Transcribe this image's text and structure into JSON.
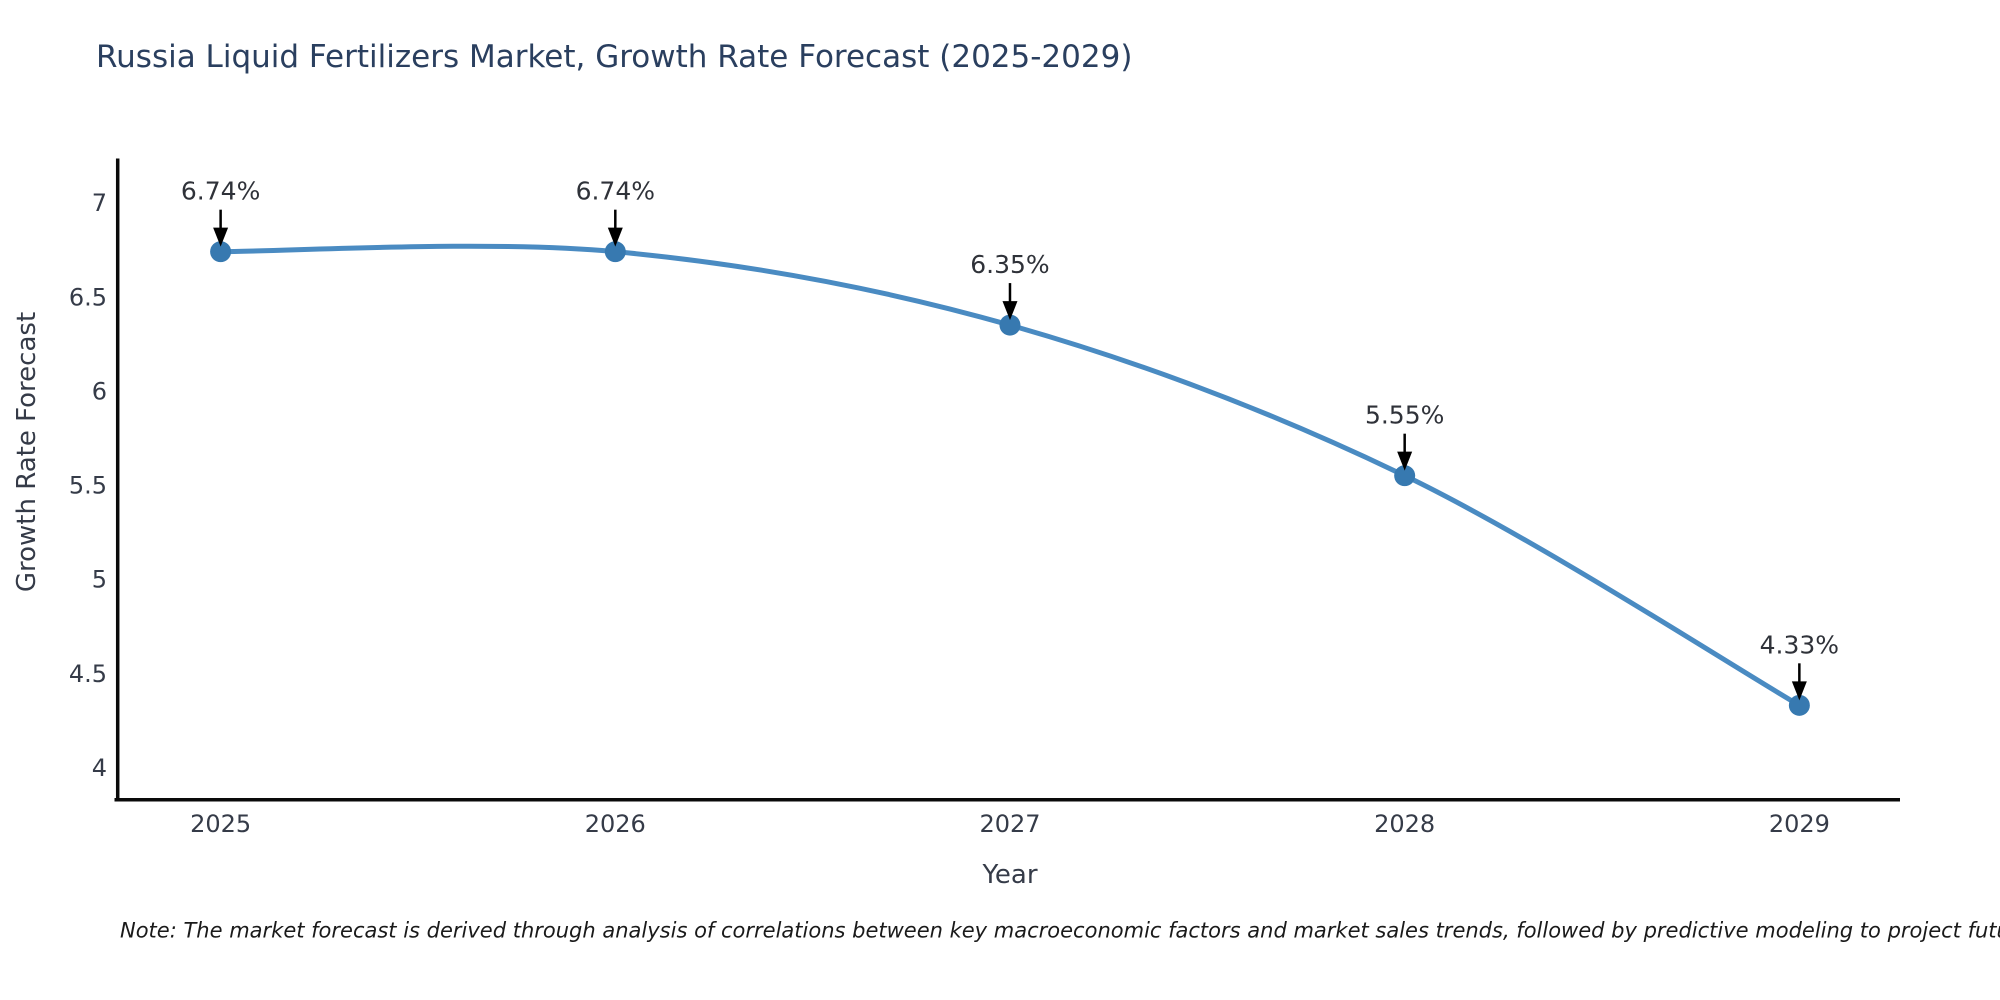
{
  "note": "Note: The market forecast is derived through analysis of correlations between key macroeconomic factors and market sales trends, followed by predictive modeling to project future sales",
  "chart_data": {
    "type": "line",
    "title": "Russia Liquid Fertilizers Market, Growth Rate Forecast (2025-2029)",
    "xlabel": "Year",
    "ylabel": "Growth Rate Forecast",
    "x": [
      2025,
      2026,
      2027,
      2028,
      2029
    ],
    "y": [
      6.74,
      6.74,
      6.35,
      5.55,
      4.33
    ],
    "point_labels": [
      "6.74%",
      "6.74%",
      "6.35%",
      "5.55%",
      "4.33%"
    ],
    "x_tick_labels": [
      "2025",
      "2026",
      "2027",
      "2028",
      "2029"
    ],
    "x_tick_values": [
      2025,
      2026,
      2027,
      2028,
      2029
    ],
    "y_tick_labels": [
      "7",
      "6.5",
      "6",
      "5.5",
      "5",
      "4.5",
      "4"
    ],
    "y_tick_values": [
      7,
      6.5,
      6,
      5.5,
      5,
      4.5,
      4
    ],
    "xlim": [
      2024.74,
      2029.255
    ],
    "ylim": [
      3.827,
      7.227
    ],
    "line_shape": "spline",
    "grid": false,
    "legend": "none",
    "colors": {
      "line": "#4a8bc2",
      "marker": "#3779b0",
      "axis": "#0a0a0a",
      "title": "#2a3f5f",
      "tick": "#353b48",
      "annotation": "#2f3239",
      "arrow": "#000000",
      "note": "#1a1a1a",
      "background": "#ffffff"
    }
  }
}
